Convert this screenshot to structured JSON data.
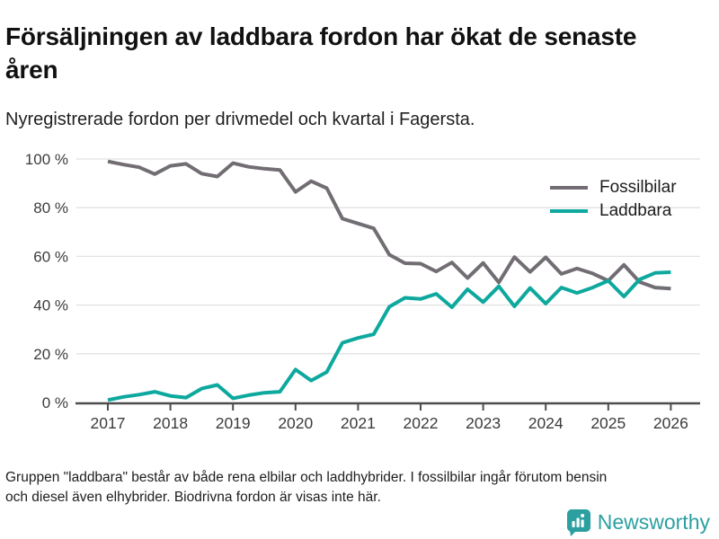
{
  "title": "Försäljningen av laddbara fordon har ökat de senaste åren",
  "subtitle": "Nyregistrerade fordon per drivmedel och kvartal i Fagersta.",
  "footer": {
    "note_line1": "Gruppen \"laddbara\" består av både rena elbilar och laddhybrider. I fossilbilar ingår förutom bensin",
    "note_line2": "och diesel även elhybrider. Biodrivna fordon är visas inte här.",
    "brand": "Newsworthy",
    "brand_color": "#2c9fa1"
  },
  "chart_data": {
    "type": "line",
    "title": "Försäljningen av laddbara fordon har ökat de senaste åren",
    "subtitle": "Nyregistrerade fordon per drivmedel och kvartal i Fagersta.",
    "x_unit": "quarter",
    "x_start": 2017,
    "x_step": 0.25,
    "x_ticks": [
      2017,
      2018,
      2019,
      2020,
      2021,
      2022,
      2023,
      2024,
      2025,
      2026
    ],
    "ylim": [
      0,
      100
    ],
    "y_ticks": [
      0,
      20,
      40,
      60,
      80,
      100
    ],
    "y_suffix": " %",
    "grid": true,
    "legend_position": "top-right",
    "axis_color": "#4d4d4d",
    "grid_color": "#e2e2e2",
    "label_color": "#3c3c3c",
    "series": [
      {
        "name": "Fossilbilar",
        "color": "#716d73",
        "values": [
          99.0,
          97.7,
          96.6,
          93.8,
          97.2,
          98.0,
          94.0,
          92.8,
          98.3,
          96.8,
          96.0,
          95.5,
          86.5,
          90.9,
          88.0,
          75.5,
          73.5,
          71.5,
          60.7,
          57.2,
          57.0,
          53.8,
          57.5,
          51.1,
          57.3,
          49.3,
          59.7,
          53.6,
          59.6,
          52.8,
          55.0,
          53.0,
          50.0,
          56.5,
          49.5,
          47.2,
          46.8
        ]
      },
      {
        "name": "Laddbara",
        "color": "#0da89e",
        "values": [
          1.0,
          2.3,
          3.2,
          4.4,
          2.7,
          2.0,
          5.7,
          7.2,
          1.7,
          3.0,
          4.0,
          4.4,
          13.5,
          9.0,
          12.5,
          24.5,
          26.5,
          28.0,
          39.3,
          43.0,
          42.5,
          44.6,
          39.1,
          46.5,
          41.2,
          47.7,
          39.5,
          47.0,
          40.6,
          47.2,
          45.0,
          47.2,
          50.0,
          43.5,
          50.5,
          53.2,
          53.5
        ]
      }
    ]
  }
}
